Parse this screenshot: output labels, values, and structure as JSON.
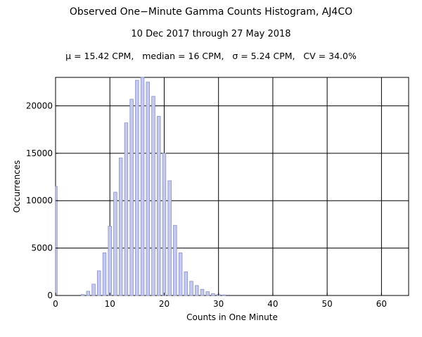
{
  "header": {
    "title": "Observed One−Minute Gamma Counts Histogram, AJ4CO",
    "subtitle": "10 Dec 2017 through 27 May 2018",
    "stats": "μ = 15.42 CPM,   median = 16 CPM,   σ = 5.24 CPM,   CV = 34.0%"
  },
  "chart_data": {
    "type": "bar",
    "title": "Observed One−Minute Gamma Counts Histogram, AJ4CO",
    "subtitle": "10 Dec 2017 through 27 May 2018",
    "xlabel": "Counts in One Minute",
    "ylabel": "Occurrences",
    "xlim": [
      0,
      65
    ],
    "ylim": [
      0,
      23000
    ],
    "grid": true,
    "xticks": [
      0,
      10,
      20,
      30,
      40,
      50,
      60
    ],
    "xtick_labels": [
      "0",
      "10",
      "20",
      "30",
      "40",
      "50",
      "60"
    ],
    "yticks": [
      0,
      5000,
      10000,
      15000,
      20000
    ],
    "ytick_labels": [
      "0",
      "5000",
      "10000",
      "15000",
      "20000"
    ],
    "bar_color": "#c6cbee",
    "bar_edge_color": "#8a90c8",
    "x": [
      0,
      5,
      6,
      7,
      8,
      9,
      10,
      11,
      12,
      13,
      14,
      15,
      16,
      17,
      18,
      19,
      20,
      21,
      22,
      23,
      24,
      25,
      26,
      27,
      28,
      29,
      30,
      31
    ],
    "values": [
      11500,
      100,
      450,
      1200,
      2600,
      4500,
      7300,
      10900,
      14500,
      18200,
      20700,
      22700,
      23000,
      22500,
      21000,
      18900,
      15000,
      12100,
      7400,
      4500,
      2500,
      1500,
      1050,
      650,
      400,
      200,
      100,
      60
    ]
  }
}
